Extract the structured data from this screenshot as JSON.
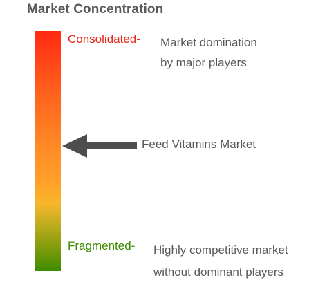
{
  "title": "Market Concentration",
  "scale": {
    "top": {
      "label": "Consolidated-",
      "description": [
        "Market domination",
        "by major players"
      ],
      "color": "#e8271a"
    },
    "bottom": {
      "label": "Fragmented-",
      "description": [
        "Highly competitive market",
        "without dominant players"
      ],
      "color": "#3e8c00"
    }
  },
  "marker": {
    "label": "Feed Vitamins Market",
    "arrow_color": "#4d4d4d"
  },
  "colors": {
    "gradient_top": "#ff2a12",
    "gradient_middle": "#ffa42a",
    "gradient_bottom": "#3e8c00",
    "text": "#595959"
  }
}
